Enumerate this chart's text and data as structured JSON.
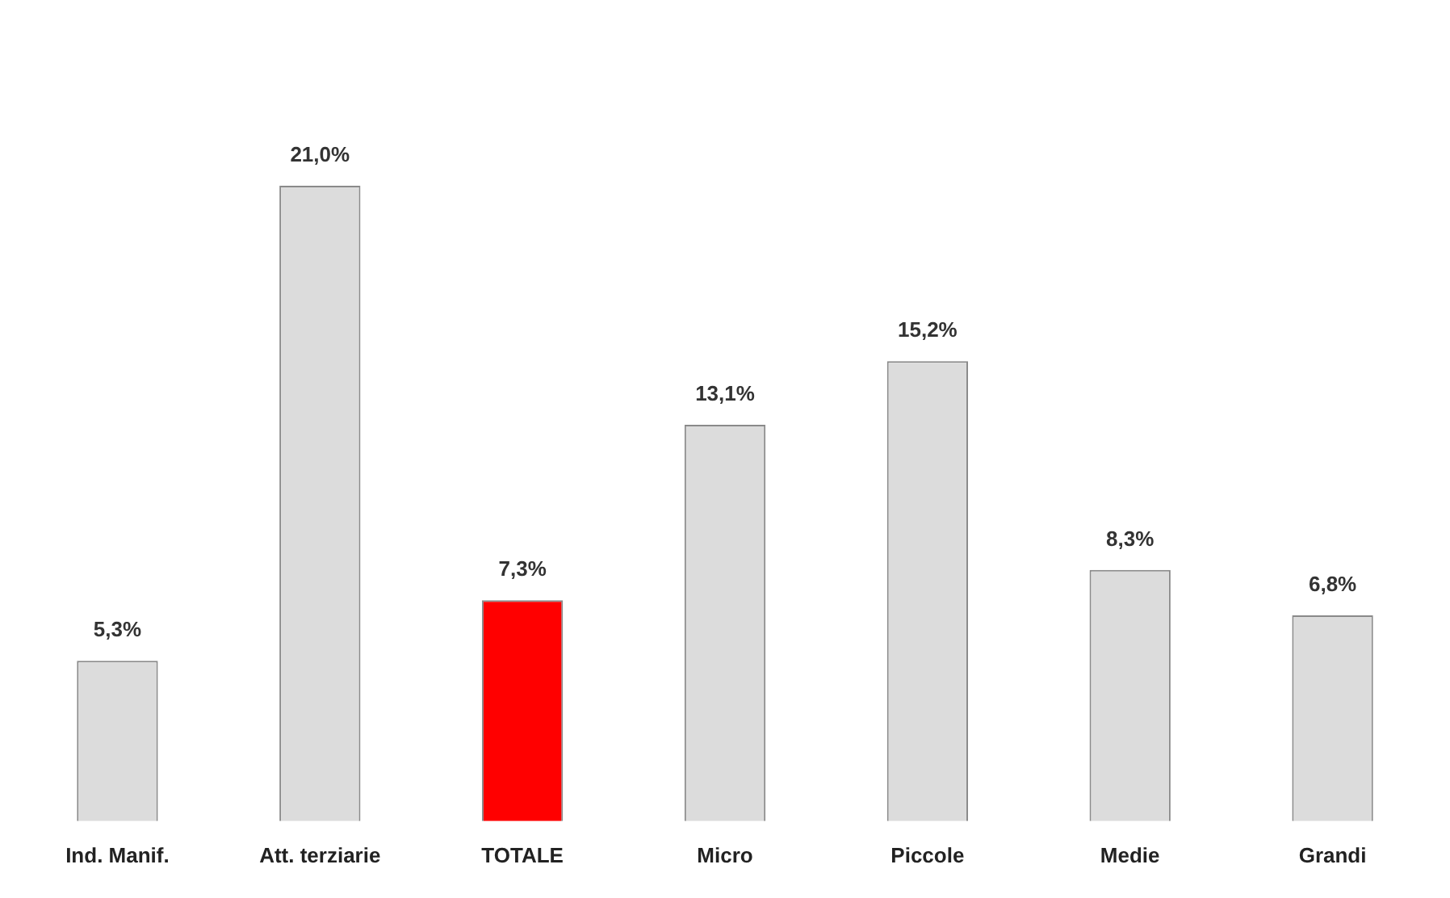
{
  "chart_data": {
    "type": "bar",
    "categories": [
      "Ind. Manif.",
      "Att. terziarie",
      "TOTALE",
      "Micro",
      "Piccole",
      "Medie",
      "Grandi"
    ],
    "values": [
      5.3,
      21.0,
      7.3,
      13.1,
      15.2,
      8.3,
      6.8
    ],
    "value_labels": [
      "5,3%",
      "21,0%",
      "7,3%",
      "13,1%",
      "15,2%",
      "8,3%",
      "6,8%"
    ],
    "colors": [
      "#dcdcdc",
      "#dcdcdc",
      "#ff0000",
      "#dcdcdc",
      "#dcdcdc",
      "#dcdcdc",
      "#dcdcdc"
    ],
    "grid": false,
    "legend": false
  }
}
